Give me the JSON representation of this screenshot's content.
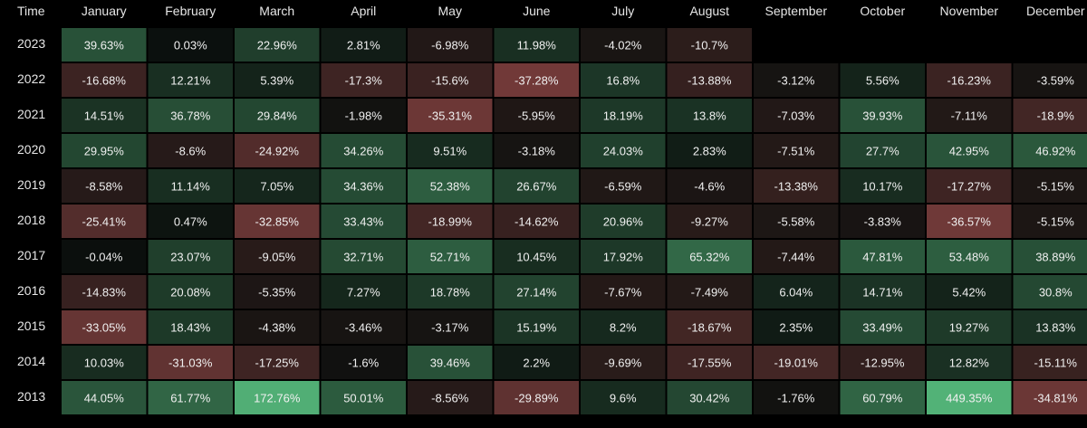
{
  "chart_data": {
    "type": "heatmap",
    "corner_label": "Time",
    "x_categories": [
      "January",
      "February",
      "March",
      "April",
      "May",
      "June",
      "July",
      "August",
      "September",
      "October",
      "November",
      "December"
    ],
    "y_categories": [
      "2023",
      "2022",
      "2021",
      "2020",
      "2019",
      "2018",
      "2017",
      "2016",
      "2015",
      "2014",
      "2013"
    ],
    "unit": "%",
    "values": [
      [
        39.63,
        0.03,
        22.96,
        2.81,
        -6.98,
        11.98,
        -4.02,
        -10.7,
        null,
        null,
        null,
        null
      ],
      [
        -16.68,
        12.21,
        5.39,
        -17.3,
        -15.6,
        -37.28,
        16.8,
        -13.88,
        -3.12,
        5.56,
        -16.23,
        -3.59
      ],
      [
        14.51,
        36.78,
        29.84,
        -1.98,
        -35.31,
        -5.95,
        18.19,
        13.8,
        -7.03,
        39.93,
        -7.11,
        -18.9
      ],
      [
        29.95,
        -8.6,
        -24.92,
        34.26,
        9.51,
        -3.18,
        24.03,
        2.83,
        -7.51,
        27.7,
        42.95,
        46.92
      ],
      [
        -8.58,
        11.14,
        7.05,
        34.36,
        52.38,
        26.67,
        -6.59,
        -4.6,
        -13.38,
        10.17,
        -17.27,
        -5.15
      ],
      [
        -25.41,
        0.47,
        -32.85,
        33.43,
        -18.99,
        -14.62,
        20.96,
        -9.27,
        -5.58,
        -3.83,
        -36.57,
        -5.15
      ],
      [
        -0.04,
        23.07,
        -9.05,
        32.71,
        52.71,
        10.45,
        17.92,
        65.32,
        -7.44,
        47.81,
        53.48,
        38.89
      ],
      [
        -14.83,
        20.08,
        -5.35,
        7.27,
        18.78,
        27.14,
        -7.67,
        -7.49,
        6.04,
        14.71,
        5.42,
        30.8
      ],
      [
        -33.05,
        18.43,
        -4.38,
        -3.46,
        -3.17,
        15.19,
        8.2,
        -18.67,
        2.35,
        33.49,
        19.27,
        13.83
      ],
      [
        10.03,
        -31.03,
        -17.25,
        -1.6,
        39.46,
        2.2,
        -9.69,
        -17.55,
        -19.01,
        -12.95,
        12.82,
        -15.11
      ],
      [
        44.05,
        61.77,
        172.76,
        50.01,
        -8.56,
        -29.89,
        9.6,
        30.42,
        -1.76,
        60.79,
        449.35,
        -34.81
      ]
    ],
    "colors": {
      "background": "#000000",
      "text": "#f0f0f0",
      "header_text": "#e6e6e6",
      "positive": "#5fcf8a",
      "negative": "#c05a5a",
      "neutral": "#0b0f0d"
    }
  }
}
